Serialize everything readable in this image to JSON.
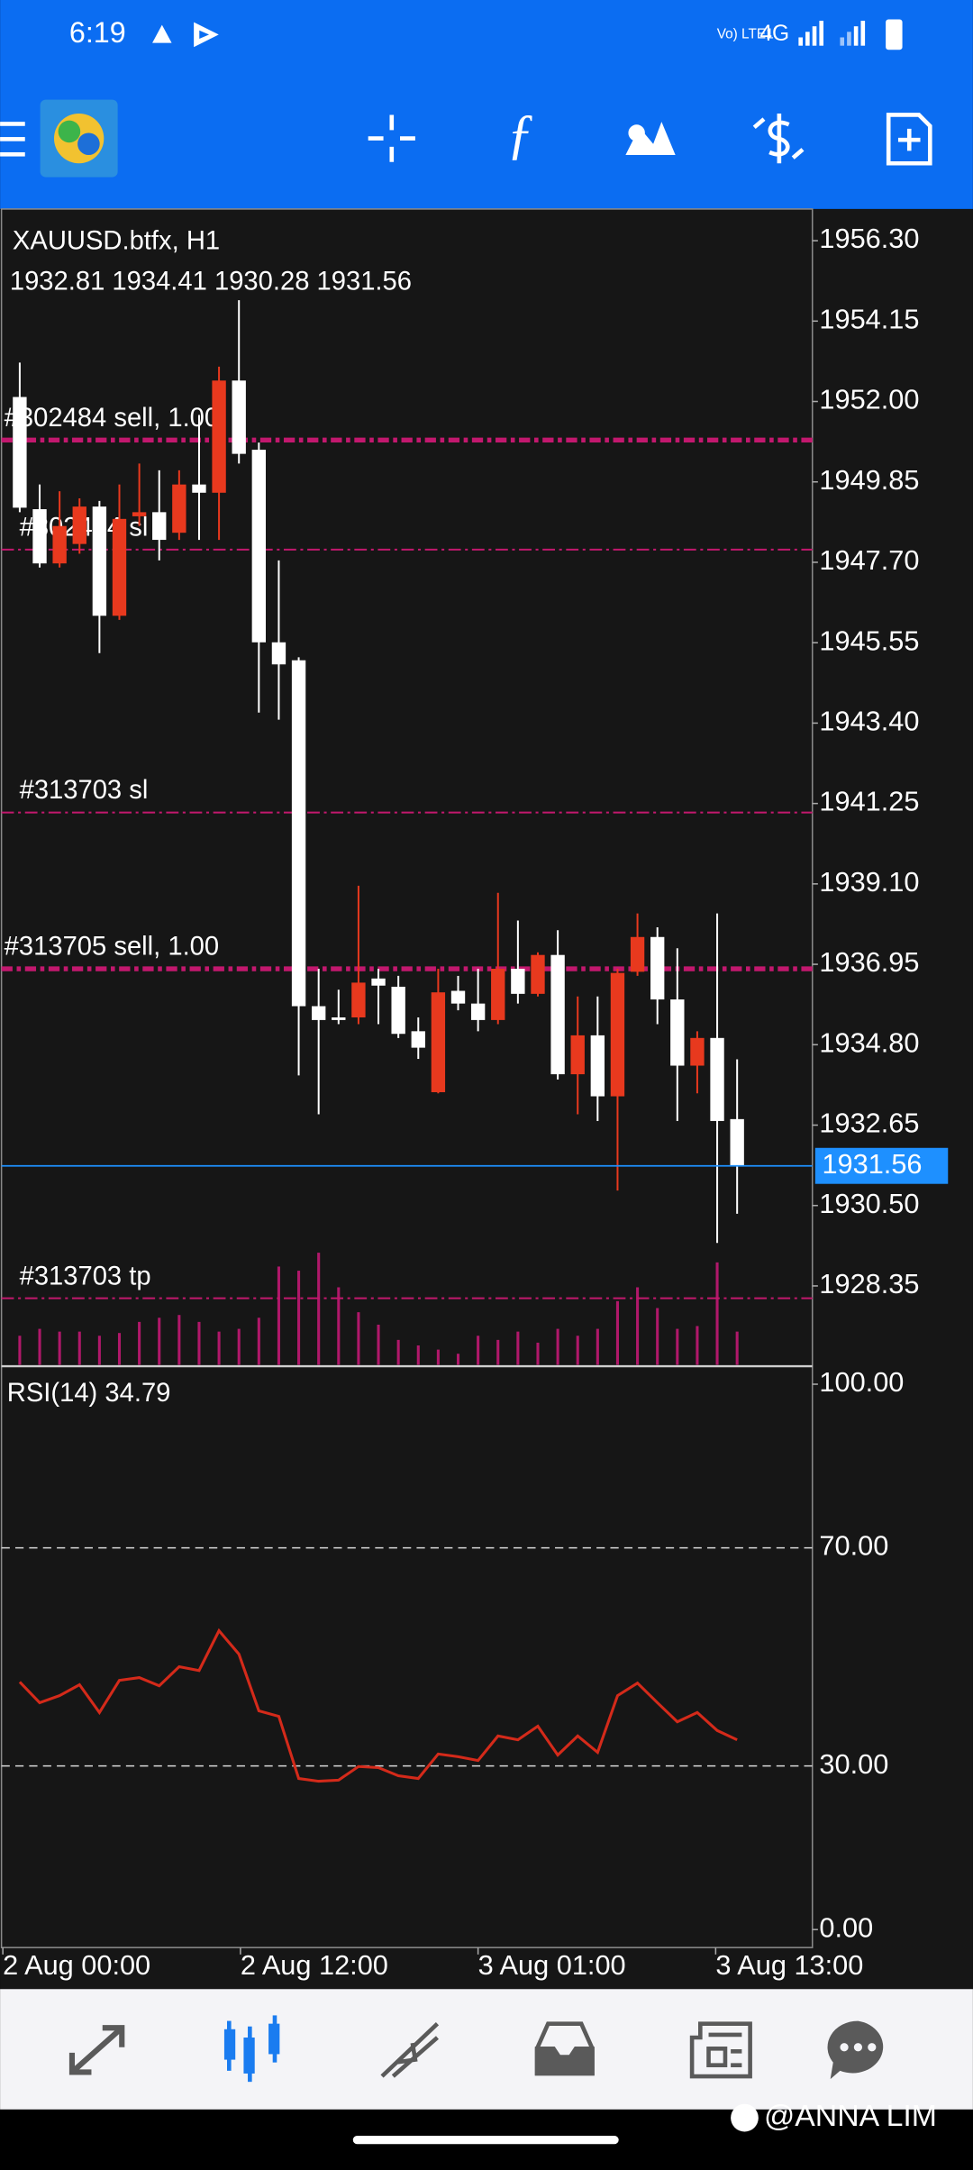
{
  "status_bar": {
    "time": "6:19",
    "volte": "Vo) LTE1",
    "network": "4G"
  },
  "chart_data": [
    {
      "type": "candlestick",
      "title": "XAUUSD.btfx, H1",
      "open": [
        1952.12,
        1949.12,
        1947.67,
        1948.19,
        1949.19,
        1946.27,
        1948.93,
        1949.04,
        1948.49,
        1949.78,
        1949.56,
        1952.56,
        1950.71,
        1945.56,
        1945.08,
        1935.83,
        1935.53,
        1935.53,
        1936.57,
        1936.35,
        1935.16,
        1933.53,
        1936.24,
        1935.9,
        1935.46,
        1936.83,
        1936.16,
        1937.2,
        1934.01,
        1935.05,
        1933.42,
        1936.75,
        1937.68,
        1936.01,
        1934.24,
        1934.98,
        1932.81
      ],
      "high": [
        1953.04,
        1949.78,
        1949.6,
        1949.41,
        1949.34,
        1949.78,
        1950.34,
        1950.16,
        1950.16,
        1951.64,
        1952.93,
        1954.71,
        1950.9,
        1947.75,
        1945.16,
        1936.83,
        1936.27,
        1939.05,
        1936.83,
        1936.64,
        1935.53,
        1936.83,
        1936.64,
        1936.83,
        1938.86,
        1938.12,
        1937.27,
        1937.86,
        1936.09,
        1936.09,
        1936.83,
        1938.31,
        1937.94,
        1937.38,
        1935.16,
        1938.31,
        1934.41
      ],
      "low": [
        1949.04,
        1947.56,
        1947.56,
        1947.93,
        1945.27,
        1946.16,
        1948.67,
        1947.75,
        1948.3,
        1948.3,
        1948.3,
        1950.34,
        1943.68,
        1943.49,
        1933.98,
        1932.94,
        1935.35,
        1935.35,
        1935.35,
        1934.98,
        1934.42,
        1933.5,
        1935.72,
        1935.16,
        1935.35,
        1935.9,
        1936.09,
        1933.87,
        1932.94,
        1932.76,
        1930.9,
        1936.64,
        1935.35,
        1932.76,
        1933.5,
        1929.5,
        1930.28
      ],
      "close": [
        1949.16,
        1947.67,
        1948.67,
        1949.19,
        1946.27,
        1948.86,
        1949.04,
        1948.3,
        1949.78,
        1949.56,
        1952.56,
        1950.6,
        1945.56,
        1944.97,
        1935.83,
        1935.46,
        1935.46,
        1936.46,
        1936.38,
        1935.09,
        1934.72,
        1936.2,
        1935.9,
        1935.46,
        1936.83,
        1936.16,
        1937.2,
        1934.01,
        1935.05,
        1933.42,
        1936.72,
        1937.68,
        1936.01,
        1934.24,
        1934.98,
        1932.76,
        1931.56
      ],
      "volumes": [
        21,
        26,
        24,
        24,
        21,
        23,
        31,
        34,
        36,
        31,
        24,
        26,
        34,
        71,
        68,
        81,
        56,
        38,
        29,
        18,
        14,
        11,
        8,
        21,
        18,
        24,
        16,
        26,
        21,
        26,
        46,
        56,
        41,
        26,
        28,
        74,
        24
      ],
      "up_color": "#e8391e",
      "down_color": "#ffffff",
      "volume_color": "#b0186a",
      "price_line_color": "#1e90ff",
      "order_lines": [
        {
          "label": "#302484 sell, 1.00",
          "value": 1950.97,
          "bold": true
        },
        {
          "label": "#302484 sl",
          "value": 1948.04,
          "bold": false
        },
        {
          "label": "#313703 sl",
          "value": 1941.01,
          "bold": false
        },
        {
          "label": "#313705 sell, 1.00",
          "value": 1936.83,
          "bold": true
        },
        {
          "label": "#313703 tp",
          "value": 1928.02,
          "bold": false
        }
      ],
      "order_color": "#c2186e",
      "ylim": [
        1926.24,
        1957.11
      ],
      "yticks": [
        {
          "value": 1956.3,
          "label": "1956.30"
        },
        1954.15,
        {
          "value": 1952,
          "label": "1952.00"
        },
        1949.85,
        {
          "value": 1947.7,
          "label": "1947.70"
        },
        1945.55,
        {
          "value": 1943.4,
          "label": "1943.40"
        },
        1941.25,
        {
          "value": 1939.1,
          "label": "1939.10"
        },
        1936.95,
        {
          "value": 1934.8,
          "label": "1934.80"
        },
        1932.65,
        {
          "value": 1930.5,
          "label": "1930.50"
        },
        1928.35
      ]
    },
    {
      "type": "line",
      "title": "RSI(14)",
      "color": "#d42a1a",
      "values": [
        45.4,
        41.6,
        42.9,
        44.9,
        39.8,
        45.7,
        46.2,
        44.7,
        48.2,
        47.5,
        54.8,
        50.5,
        40.1,
        39.1,
        27.7,
        27.2,
        27.4,
        29.9,
        29.7,
        28.2,
        27.7,
        32.2,
        31.7,
        31.0,
        35.5,
        34.8,
        37.3,
        32.0,
        35.5,
        32.5,
        42.9,
        45.2,
        41.6,
        38.1,
        39.8,
        36.5,
        34.79
      ],
      "ylim": [
        -3.3,
        103.05
      ],
      "yticks": [
        {
          "value": 0,
          "label": "0.00"
        },
        {
          "value": 30,
          "label": "30.00"
        },
        {
          "value": 70,
          "label": "70.00"
        },
        {
          "value": 100,
          "label": "100.00"
        }
      ],
      "x_labels": [
        "2 Aug 00:00",
        "2 Aug 12:00",
        "3 Aug 01:00",
        "3 Aug 13:00"
      ]
    }
  ],
  "watermark": "@ANNA LIM"
}
